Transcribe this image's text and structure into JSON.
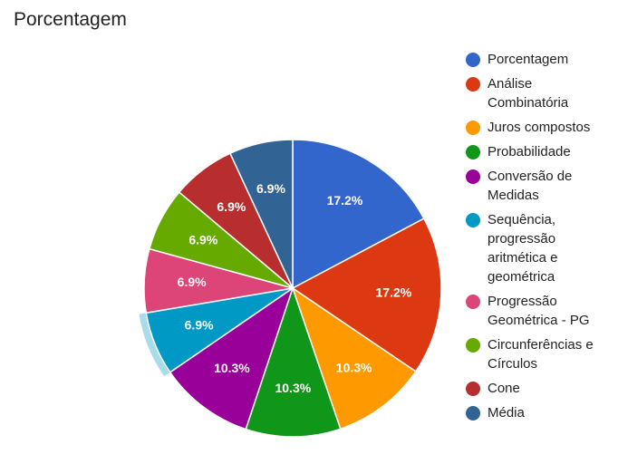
{
  "title": "Porcentagem",
  "chart_data": {
    "type": "pie",
    "title": "Porcentagem",
    "legend_position": "right",
    "slices": [
      {
        "name": "Porcentagem",
        "value": 17.2,
        "label": "17.2%",
        "color": "#3366cc"
      },
      {
        "name": "Análise Combinatória",
        "value": 17.2,
        "label": "17.2%",
        "color": "#dc3912"
      },
      {
        "name": "Juros compostos",
        "value": 10.3,
        "label": "10.3%",
        "color": "#ff9900"
      },
      {
        "name": "Probabilidade",
        "value": 10.3,
        "label": "10.3%",
        "color": "#109618"
      },
      {
        "name": "Conversão de Medidas",
        "value": 10.3,
        "label": "10.3%",
        "color": "#990099"
      },
      {
        "name": "Sequência, progressão aritmética e geométrica",
        "value": 6.9,
        "label": "6.9%",
        "color": "#0099c6",
        "highlighted": true
      },
      {
        "name": "Progressão Geométrica - PG",
        "value": 6.9,
        "label": "6.9%",
        "color": "#dd4477"
      },
      {
        "name": "Circunferências e Círculos",
        "value": 6.9,
        "label": "6.9%",
        "color": "#66aa00"
      },
      {
        "name": "Cone",
        "value": 6.9,
        "label": "6.9%",
        "color": "#b82e2e"
      },
      {
        "name": "Média",
        "value": 6.9,
        "label": "6.9%",
        "color": "#316395"
      }
    ],
    "legend": [
      "Porcentagem",
      "Análise\nCombinatória",
      "Juros compostos",
      "Probabilidade",
      "Conversão de\nMedidas",
      "Sequência,\nprogressão\naritmética e\ngeométrica",
      "Progressão\nGeométrica - PG",
      "Circunferências e\nCírculos",
      "Cone",
      "Média"
    ]
  }
}
